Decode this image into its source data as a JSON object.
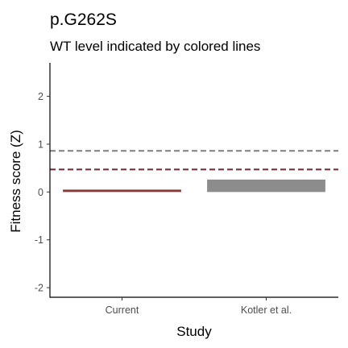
{
  "chart_data": {
    "type": "bar",
    "title": "p.G262S",
    "subtitle": "WT level indicated by colored lines",
    "xlabel": "Study",
    "ylabel": "Fitness score (Z)",
    "categories": [
      "Current",
      "Kotler et al."
    ],
    "ylim": [
      -2.2,
      2.7
    ],
    "yticks": [
      -2,
      -1,
      0,
      1,
      2
    ],
    "bars": [
      {
        "category": "Current",
        "ymin": 0.0,
        "ymax": 0.05,
        "color": "#8b3a3a"
      },
      {
        "category": "Kotler et al.",
        "ymin": 0.0,
        "ymax": 0.26,
        "color": "#8c8c8c"
      }
    ],
    "reference_lines": [
      {
        "y": 0.86,
        "color": "#7f7f7f",
        "style": "dashed"
      },
      {
        "y": 0.47,
        "color": "#6b2a35",
        "style": "dashed"
      }
    ],
    "grid": false
  }
}
